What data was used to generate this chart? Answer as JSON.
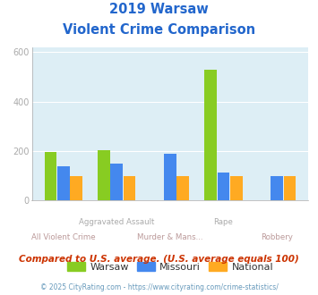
{
  "title_line1": "2019 Warsaw",
  "title_line2": "Violent Crime Comparison",
  "warsaw": [
    197,
    205,
    0,
    530,
    0
  ],
  "missouri": [
    137,
    148,
    188,
    113,
    100
  ],
  "national": [
    100,
    100,
    100,
    100,
    100
  ],
  "warsaw_color": "#88cc22",
  "missouri_color": "#4488ee",
  "national_color": "#ffaa22",
  "ylim": [
    0,
    620
  ],
  "yticks": [
    0,
    200,
    400,
    600
  ],
  "bg_color": "#ddeef5",
  "title_color": "#2266cc",
  "xlabel_color_top": "#aaaaaa",
  "xlabel_color_bot": "#bb9999",
  "footer_text": "Compared to U.S. average. (U.S. average equals 100)",
  "footer2_text": "© 2025 CityRating.com - https://www.cityrating.com/crime-statistics/",
  "legend_labels": [
    "Warsaw",
    "Missouri",
    "National"
  ],
  "legend_text_color": "#333333",
  "footer_color": "#cc3300",
  "footer2_color": "#6699bb"
}
